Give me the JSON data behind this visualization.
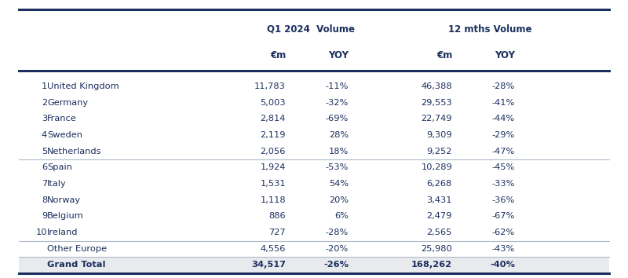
{
  "rows": [
    {
      "rank": "1",
      "country": "United Kingdom",
      "q1_em": "11,783",
      "q1_yoy": "-11%",
      "12m_em": "46,388",
      "12m_yoy": "-28%",
      "group": "top5"
    },
    {
      "rank": "2",
      "country": "Germany",
      "q1_em": "5,003",
      "q1_yoy": "-32%",
      "12m_em": "29,553",
      "12m_yoy": "-41%",
      "group": "top5"
    },
    {
      "rank": "3",
      "country": "France",
      "q1_em": "2,814",
      "q1_yoy": "-69%",
      "12m_em": "22,749",
      "12m_yoy": "-44%",
      "group": "top5"
    },
    {
      "rank": "4",
      "country": "Sweden",
      "q1_em": "2,119",
      "q1_yoy": "28%",
      "12m_em": "9,309",
      "12m_yoy": "-29%",
      "group": "top5"
    },
    {
      "rank": "5",
      "country": "Netherlands",
      "q1_em": "2,056",
      "q1_yoy": "18%",
      "12m_em": "9,252",
      "12m_yoy": "-47%",
      "group": "top5"
    },
    {
      "rank": "6",
      "country": "Spain",
      "q1_em": "1,924",
      "q1_yoy": "-53%",
      "12m_em": "10,289",
      "12m_yoy": "-45%",
      "group": "mid5"
    },
    {
      "rank": "7",
      "country": "Italy",
      "q1_em": "1,531",
      "q1_yoy": "54%",
      "12m_em": "6,268",
      "12m_yoy": "-33%",
      "group": "mid5"
    },
    {
      "rank": "8",
      "country": "Norway",
      "q1_em": "1,118",
      "q1_yoy": "20%",
      "12m_em": "3,431",
      "12m_yoy": "-36%",
      "group": "mid5"
    },
    {
      "rank": "9",
      "country": "Belgium",
      "q1_em": "886",
      "q1_yoy": "6%",
      "12m_em": "2,479",
      "12m_yoy": "-67%",
      "group": "mid5"
    },
    {
      "rank": "10",
      "country": "Ireland",
      "q1_em": "727",
      "q1_yoy": "-28%",
      "12m_em": "2,565",
      "12m_yoy": "-62%",
      "group": "mid5"
    },
    {
      "rank": "",
      "country": "Other Europe",
      "q1_em": "4,556",
      "q1_yoy": "-20%",
      "12m_em": "25,980",
      "12m_yoy": "-43%",
      "group": "other"
    },
    {
      "rank": "",
      "country": "Grand Total",
      "q1_em": "34,517",
      "q1_yoy": "-26%",
      "12m_em": "168,262",
      "12m_yoy": "-40%",
      "group": "total"
    }
  ],
  "dark_color": "#1b2f5e",
  "light_divider_color": "#b0b8c8",
  "total_bg_color": "#e8eaee",
  "bg_color": "#ffffff",
  "text_color": "#1b2f5e",
  "header1_label_left": "Q1 2024  Volume",
  "header1_label_right": "12 mths Volume",
  "sub_headers": [
    "€m",
    "YOY",
    "€m",
    "YOY"
  ],
  "font_size": 8.2,
  "header_font_size": 8.5
}
